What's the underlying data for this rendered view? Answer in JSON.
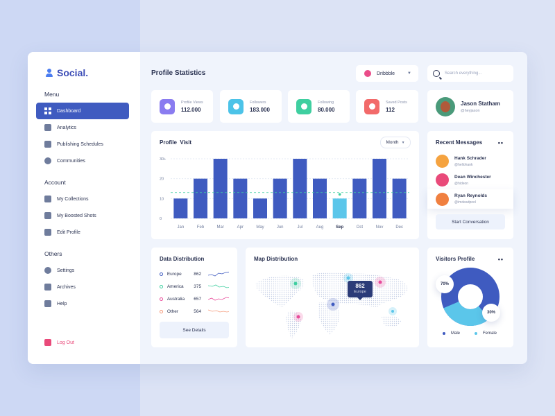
{
  "brand": {
    "name": "Social."
  },
  "menu": {
    "heading": "Menu",
    "items": [
      {
        "label": "Dashboard",
        "icon": "grid-icon",
        "active": true
      },
      {
        "label": "Analytics",
        "icon": "chart-icon"
      },
      {
        "label": "Publishing Schedules",
        "icon": "calendar-icon"
      },
      {
        "label": "Communities",
        "icon": "location-icon"
      }
    ]
  },
  "account": {
    "heading": "Account",
    "items": [
      {
        "label": "My Collections",
        "icon": "bookmark-icon"
      },
      {
        "label": "My Boosted Shots",
        "icon": "upload-icon"
      },
      {
        "label": "Edit Profile",
        "icon": "edit-icon"
      }
    ]
  },
  "others": {
    "heading": "Others",
    "items": [
      {
        "label": "Settings",
        "icon": "gear-icon"
      },
      {
        "label": "Archives",
        "icon": "archive-icon"
      },
      {
        "label": "Help",
        "icon": "info-icon"
      }
    ]
  },
  "logout": {
    "label": "Log Out"
  },
  "header": {
    "title": "Profile Statistics",
    "source_selected": "Dribbble",
    "search_placeholder": "Search everything..."
  },
  "stats": [
    {
      "label": "Profile Views",
      "value": "112.000",
      "color": "#8a7cf0",
      "icon": "eye-icon"
    },
    {
      "label": "Followers",
      "value": "183.000",
      "color": "#4cc3e8",
      "icon": "user-icon"
    },
    {
      "label": "Following",
      "value": "80.000",
      "color": "#3fcfa0",
      "icon": "user-plus-icon"
    },
    {
      "label": "Saved Posts",
      "value": "112",
      "color": "#f26a6a",
      "icon": "bookmark-icon"
    }
  ],
  "profile": {
    "name": "Jason Statham",
    "handle": "@heyjason"
  },
  "visit": {
    "title": "Profile  Visit",
    "period": "Month"
  },
  "chart_data": {
    "type": "bar",
    "categories": [
      "Jan",
      "Feb",
      "Mar",
      "Apr",
      "May",
      "Jun",
      "Jul",
      "Aug",
      "Sep",
      "Oct",
      "Nov",
      "Dec"
    ],
    "values": [
      10,
      20,
      30,
      20,
      10,
      20,
      30,
      20,
      10,
      20,
      30,
      20
    ],
    "highlighted": "Sep",
    "yticks": [
      "0",
      "10",
      "20",
      "30+"
    ],
    "ylim": [
      0,
      30
    ],
    "grid": true,
    "bar_color": "#3f5bc0",
    "highlight_color": "#5bc6ea"
  },
  "messages": {
    "title": "Recent Messages",
    "items": [
      {
        "name": "Hank Schrader",
        "handle": "@hellohank",
        "color": "#f5a340"
      },
      {
        "name": "Dean Winchester",
        "handle": "@hideon",
        "color": "#e94a7a"
      },
      {
        "name": "Ryan Reynolds",
        "handle": "@imdeadpool",
        "color": "#f08040"
      }
    ],
    "button": "Start Conversation"
  },
  "distribution": {
    "title": "Data Distribution",
    "rows": [
      {
        "name": "Europe",
        "value": "862",
        "color": "#3f5bc0"
      },
      {
        "name": "America",
        "value": "375",
        "color": "#3fcfa0"
      },
      {
        "name": "Australia",
        "value": "657",
        "color": "#e94a9a"
      },
      {
        "name": "Other",
        "value": "564",
        "color": "#f59a7a"
      }
    ],
    "button": "See Details"
  },
  "map": {
    "title": "Map Distribution",
    "tooltip_value": "862",
    "tooltip_label": "Europe"
  },
  "visitors": {
    "title": "Visitors Profile",
    "male_pct": "70%",
    "female_pct": "30%",
    "male_label": "Male",
    "female_label": "Female",
    "male_color": "#3f5bc0",
    "female_color": "#5bc6ea"
  }
}
